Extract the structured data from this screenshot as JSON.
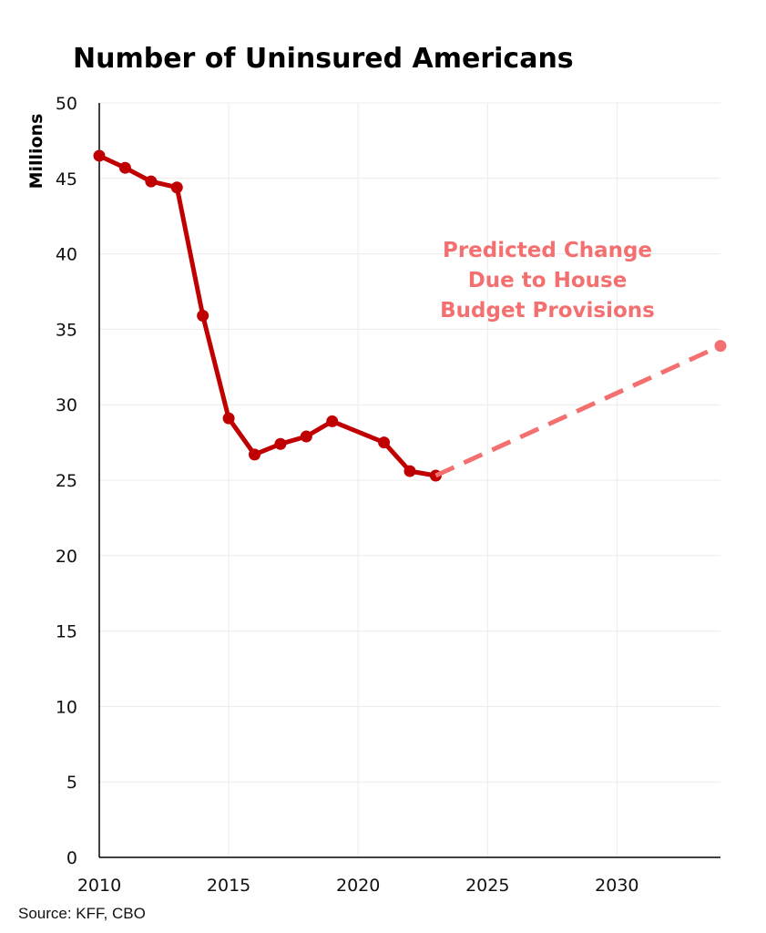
{
  "colors": {
    "actual_series": "#c00000",
    "projected_series": "#f47070",
    "grid": "#ececec",
    "axis": "#000000",
    "text": "#000000",
    "background": "#ffffff"
  },
  "chart_data": {
    "type": "line",
    "title": "Number of Uninsured Americans",
    "xlabel": "",
    "ylabel": "Millions",
    "xlim": [
      2010,
      2034
    ],
    "ylim": [
      0,
      50
    ],
    "x_ticks": [
      2010,
      2015,
      2020,
      2025,
      2030
    ],
    "y_ticks": [
      0,
      5,
      10,
      15,
      20,
      25,
      30,
      35,
      40,
      45,
      50
    ],
    "grid": true,
    "legend": "none",
    "series": [
      {
        "style": "solid",
        "color": "#c00000",
        "x": [
          2010,
          2011,
          2012,
          2013,
          2014,
          2015,
          2016,
          2017,
          2018,
          2019,
          2021,
          2022,
          2023
        ],
        "y": [
          46.5,
          45.7,
          44.8,
          44.4,
          35.9,
          29.1,
          26.7,
          27.4,
          27.9,
          28.9,
          27.5,
          25.6,
          25.3
        ]
      },
      {
        "style": "dashed",
        "color": "#f47070",
        "x": [
          2023,
          2034
        ],
        "y": [
          25.3,
          33.9
        ],
        "marker_at_end_only": true
      }
    ],
    "annotations": [
      {
        "lines": [
          "Predicted Change",
          "Due to House",
          "Budget Provisions"
        ],
        "color": "#f47070"
      }
    ]
  },
  "source_note": "Source: KFF, CBO"
}
